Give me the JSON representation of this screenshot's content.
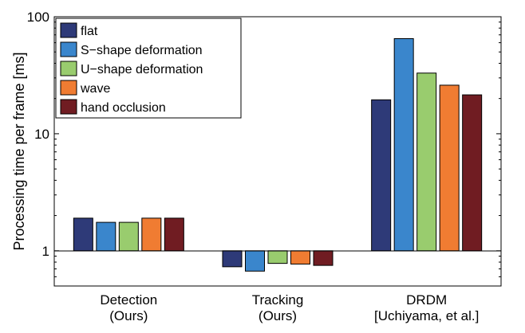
{
  "chart_data": {
    "type": "bar",
    "yscale": "log",
    "ylim": [
      0.5,
      100
    ],
    "yticks": [
      1,
      10,
      100
    ],
    "ytick_labels": [
      "1",
      "10",
      "100"
    ],
    "ylabel": "Processing time per frame [ms]",
    "xlabel": "",
    "title": "",
    "categories": [
      [
        "Detection",
        "(Ours)"
      ],
      [
        "Tracking",
        "(Ours)"
      ],
      [
        "DRDM",
        "[Uchiyama, et al.]"
      ]
    ],
    "series": [
      {
        "name": "flat",
        "color": "#2e3a78",
        "values": [
          1.9,
          0.73,
          19.5
        ]
      },
      {
        "name": "S−shape deformation",
        "color": "#3a86cc",
        "values": [
          1.75,
          0.67,
          65
        ]
      },
      {
        "name": "U−shape deformation",
        "color": "#99cc6e",
        "values": [
          1.75,
          0.78,
          33
        ]
      },
      {
        "name": "wave",
        "color": "#f07c32",
        "values": [
          1.9,
          0.77,
          26
        ]
      },
      {
        "name": "hand occlusion",
        "color": "#701c22",
        "values": [
          1.9,
          0.75,
          21.5
        ]
      }
    ],
    "legend_position": "top-left",
    "baseline": 1
  }
}
